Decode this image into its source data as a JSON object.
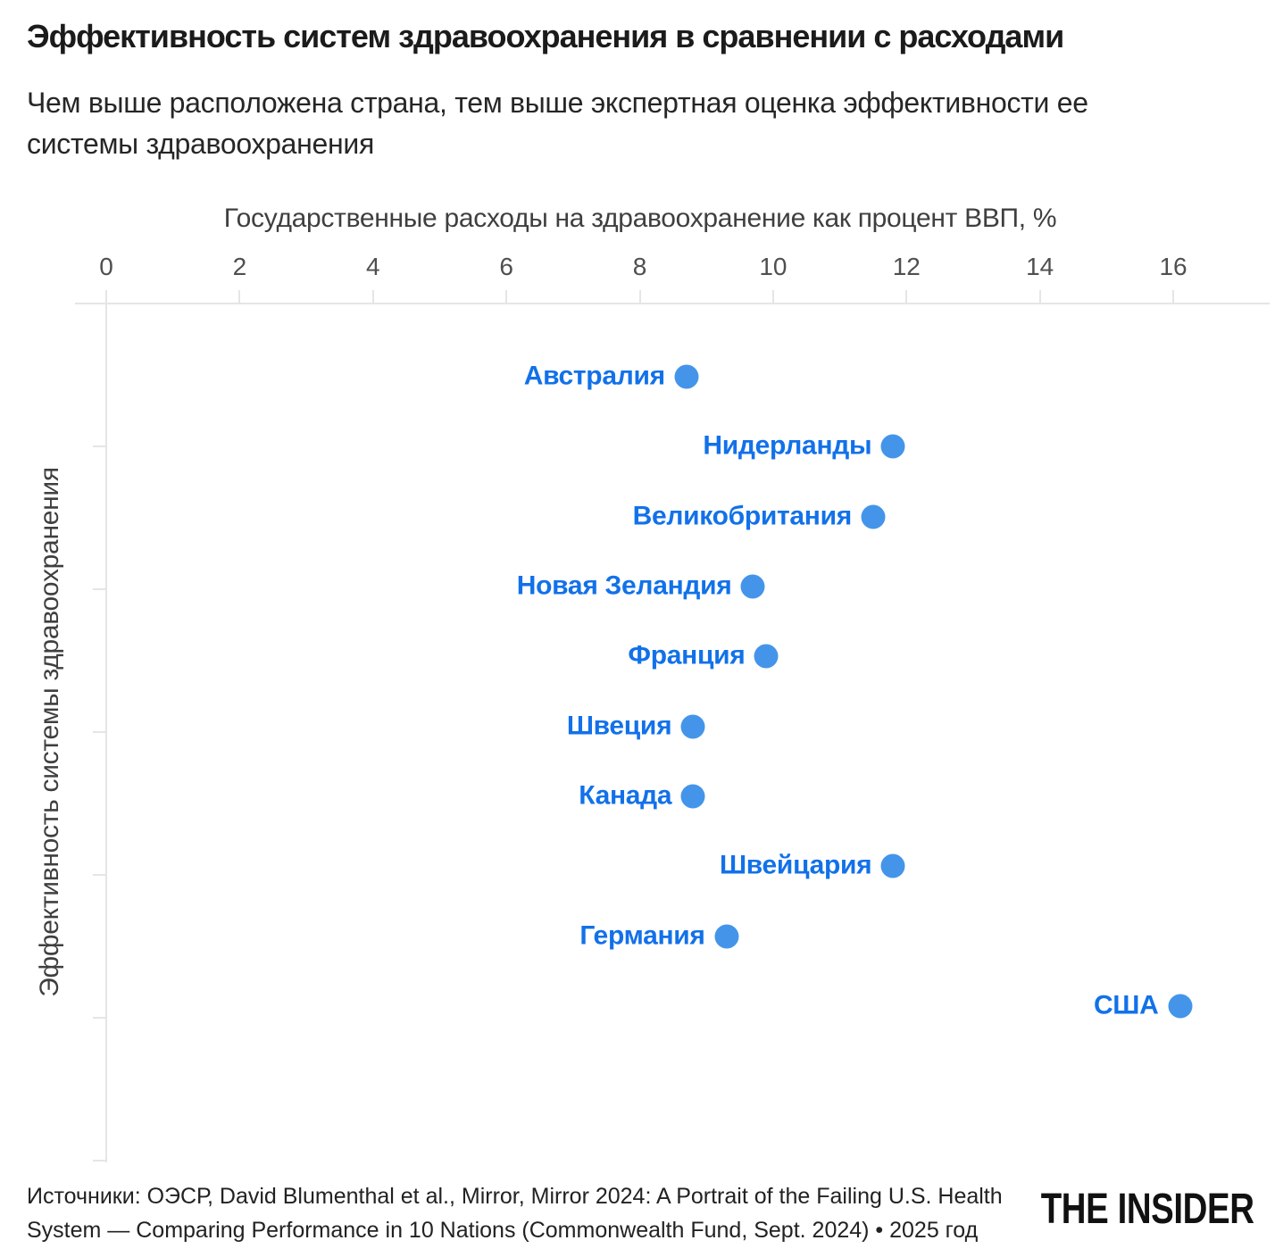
{
  "header": {
    "title": "Эффективность систем здравоохранения в сравнении с расходами",
    "subtitle": "Чем выше расположена страна, тем выше экспертная оценка эффективности ее системы здравоохранения"
  },
  "chart_data": {
    "type": "scatter",
    "title": "Эффективность систем здравоохранения в сравнении с расходами",
    "xlabel": "Государственные расходы на здравоохранение как процент ВВП, %",
    "ylabel": "Эффективность системы здравоохранения",
    "x_ticks": [
      0,
      2,
      4,
      6,
      8,
      10,
      12,
      14,
      16
    ],
    "xlim": [
      0,
      17.4
    ],
    "y_axis_note": "Страны упорядочены по экспертной оценке эффективности: выше = эффективнее",
    "grid": "off",
    "legend": "none",
    "points": [
      {
        "country": "Австралия",
        "spending_pct_gdp": 8.7,
        "effectiveness_rank": 1
      },
      {
        "country": "Нидерланды",
        "spending_pct_gdp": 11.8,
        "effectiveness_rank": 2
      },
      {
        "country": "Великобритания",
        "spending_pct_gdp": 11.5,
        "effectiveness_rank": 3
      },
      {
        "country": "Новая Зеландия",
        "spending_pct_gdp": 9.7,
        "effectiveness_rank": 4
      },
      {
        "country": "Франция",
        "spending_pct_gdp": 9.9,
        "effectiveness_rank": 5
      },
      {
        "country": "Швеция",
        "spending_pct_gdp": 8.8,
        "effectiveness_rank": 6
      },
      {
        "country": "Канада",
        "spending_pct_gdp": 8.8,
        "effectiveness_rank": 7
      },
      {
        "country": "Швейцария",
        "spending_pct_gdp": 11.8,
        "effectiveness_rank": 8
      },
      {
        "country": "Германия",
        "spending_pct_gdp": 9.3,
        "effectiveness_rank": 9
      },
      {
        "country": "США",
        "spending_pct_gdp": 16.1,
        "effectiveness_rank": 10
      }
    ],
    "colors": {
      "dot": "#4495ea",
      "label": "#1271e9",
      "axis_line": "#e5e5e5",
      "axis_text": "#3f3f3f",
      "tick_text": "#4f4f4f"
    }
  },
  "footer": {
    "source": "Источники: ОЭСР, David Blumenthal et al., Mirror, Mirror 2024: A Portrait of the Failing U.S. Health System — Comparing Performance in 10 Nations (Commonwealth Fund, Sept. 2024) • 2025 год",
    "logo": "THE INSIDER"
  }
}
